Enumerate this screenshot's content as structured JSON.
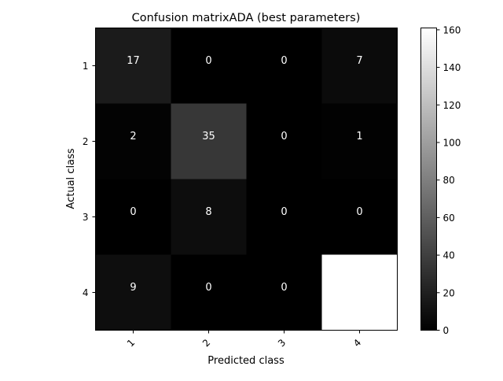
{
  "chart_data": {
    "type": "heatmap",
    "title": "Confusion matrixADA (best parameters)",
    "xlabel": "Predicted class",
    "ylabel": "Actual class",
    "x_categories": [
      "1",
      "2",
      "3",
      "4"
    ],
    "y_categories": [
      "1",
      "2",
      "3",
      "4"
    ],
    "values": [
      [
        17,
        0,
        0,
        7
      ],
      [
        2,
        35,
        0,
        1
      ],
      [
        0,
        8,
        0,
        0
      ],
      [
        9,
        0,
        0,
        161
      ]
    ],
    "colormap": "gray",
    "value_range": [
      0,
      161
    ],
    "colorbar_ticks": [
      0,
      20,
      40,
      60,
      80,
      100,
      120,
      140,
      160
    ],
    "text_color": "#ffffff",
    "frame_color": "#000000"
  }
}
